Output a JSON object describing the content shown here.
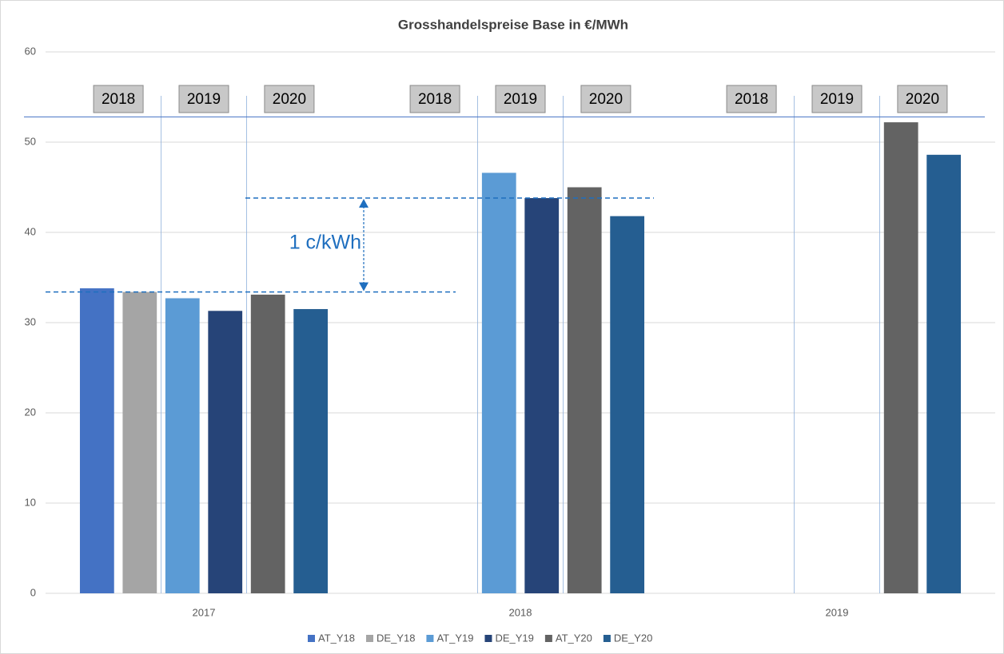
{
  "chart_data": {
    "type": "bar",
    "title": "Grosshandelspreise Base in €/MWh",
    "categories": [
      "2017",
      "2018",
      "2019"
    ],
    "series": [
      {
        "name": "AT_Y18",
        "color": "#4472c4",
        "values": [
          33.8,
          null,
          null
        ]
      },
      {
        "name": "DE_Y18",
        "color": "#a5a5a5",
        "values": [
          33.4,
          null,
          null
        ]
      },
      {
        "name": "AT_Y19",
        "color": "#5b9bd5",
        "values": [
          32.7,
          46.6,
          null
        ]
      },
      {
        "name": "DE_Y19",
        "color": "#264478",
        "values": [
          31.3,
          43.8,
          null
        ]
      },
      {
        "name": "AT_Y20",
        "color": "#636363",
        "values": [
          33.1,
          45.0,
          52.2
        ]
      },
      {
        "name": "DE_Y20",
        "color": "#255e91",
        "values": [
          31.5,
          41.8,
          48.6
        ]
      }
    ],
    "ylim": [
      0,
      60
    ],
    "yticks": [
      0,
      10,
      20,
      30,
      40,
      50,
      60
    ],
    "grid": true,
    "legend": "bottom",
    "box_labels": [
      [
        "2018",
        "2019",
        "2020"
      ],
      [
        "2018",
        "2019",
        "2020"
      ],
      [
        "2018",
        "2019",
        "2020"
      ]
    ],
    "reference_lines": [
      33.4,
      43.8
    ],
    "top_line": 52.8,
    "annotation": "1 c/kWh"
  }
}
